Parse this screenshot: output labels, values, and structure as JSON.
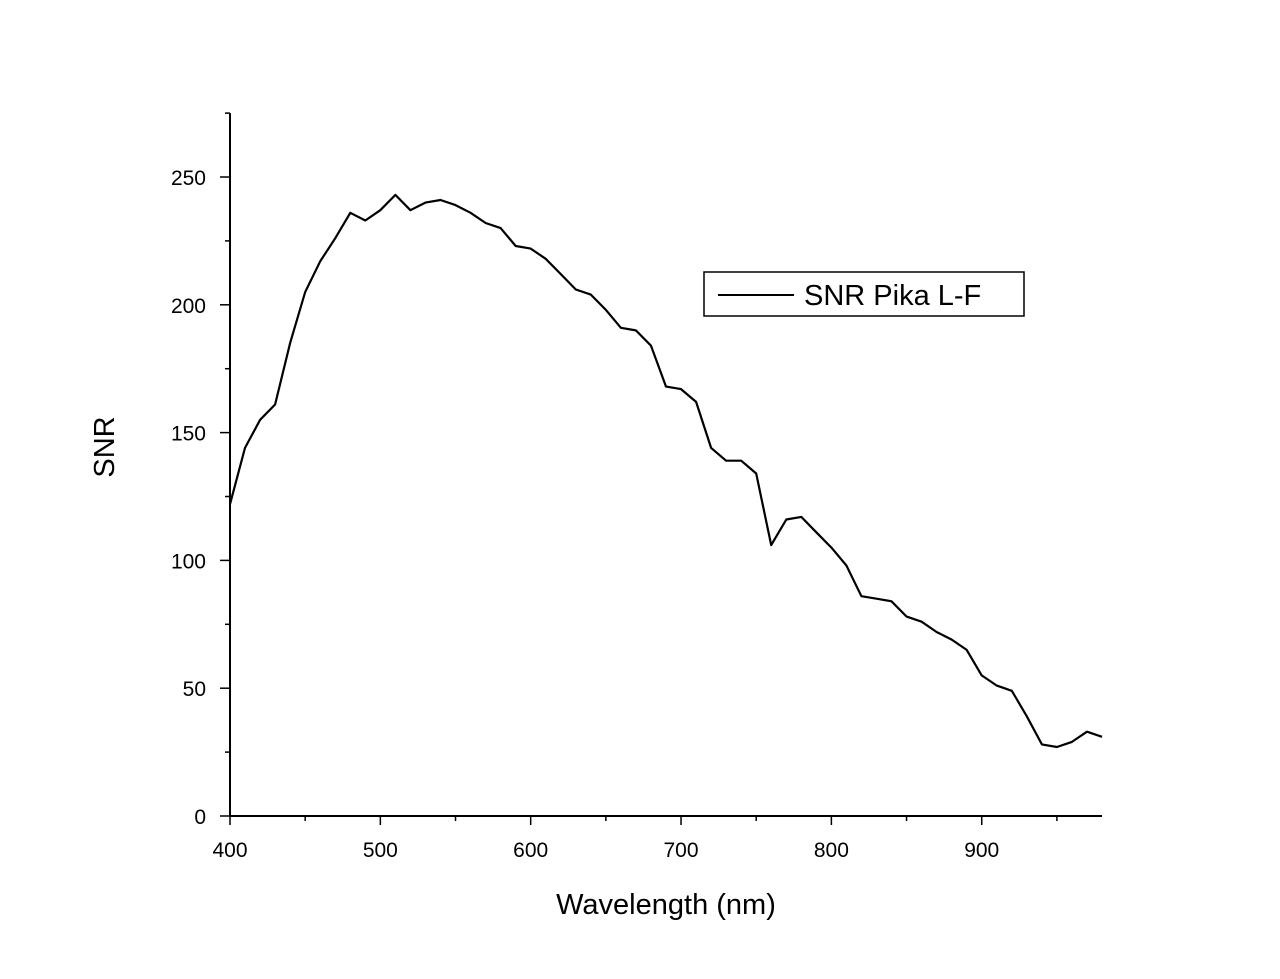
{
  "chart_data": {
    "type": "line",
    "title": "",
    "xlabel": "Wavelength (nm)",
    "ylabel": "SNR",
    "xlim": [
      400,
      980
    ],
    "ylim": [
      0,
      275
    ],
    "x_ticks": [
      400,
      500,
      600,
      700,
      800,
      900
    ],
    "y_ticks": [
      0,
      50,
      100,
      150,
      200,
      250
    ],
    "grid": false,
    "legend_position": "upper right (inside plot)",
    "series": [
      {
        "name": "SNR Pika L-F",
        "color": "#000000",
        "x": [
          400,
          410,
          420,
          430,
          440,
          450,
          460,
          470,
          480,
          490,
          500,
          510,
          520,
          530,
          540,
          550,
          560,
          570,
          580,
          590,
          600,
          610,
          620,
          630,
          640,
          650,
          660,
          670,
          680,
          690,
          700,
          710,
          720,
          730,
          740,
          750,
          760,
          770,
          780,
          790,
          800,
          810,
          820,
          830,
          840,
          850,
          860,
          870,
          880,
          890,
          900,
          910,
          920,
          930,
          940,
          950,
          960,
          970,
          980
        ],
        "values": [
          122,
          144,
          155,
          161,
          185,
          205,
          217,
          226,
          236,
          233,
          237,
          243,
          237,
          240,
          241,
          239,
          236,
          232,
          230,
          223,
          222,
          218,
          212,
          206,
          204,
          198,
          191,
          190,
          184,
          168,
          167,
          162,
          144,
          139,
          139,
          134,
          106,
          116,
          117,
          111,
          105,
          98,
          86,
          85,
          84,
          78,
          76,
          72,
          69,
          65,
          55,
          51,
          49,
          39,
          28,
          27,
          29,
          33,
          31
        ]
      }
    ]
  },
  "legend": {
    "label": "SNR Pika L-F"
  },
  "axes": {
    "x_title": "Wavelength (nm)",
    "y_title": "SNR",
    "x_tick_labels": [
      "400",
      "500",
      "600",
      "700",
      "800",
      "900"
    ],
    "y_tick_labels": [
      "0",
      "50",
      "100",
      "150",
      "200",
      "250"
    ]
  }
}
